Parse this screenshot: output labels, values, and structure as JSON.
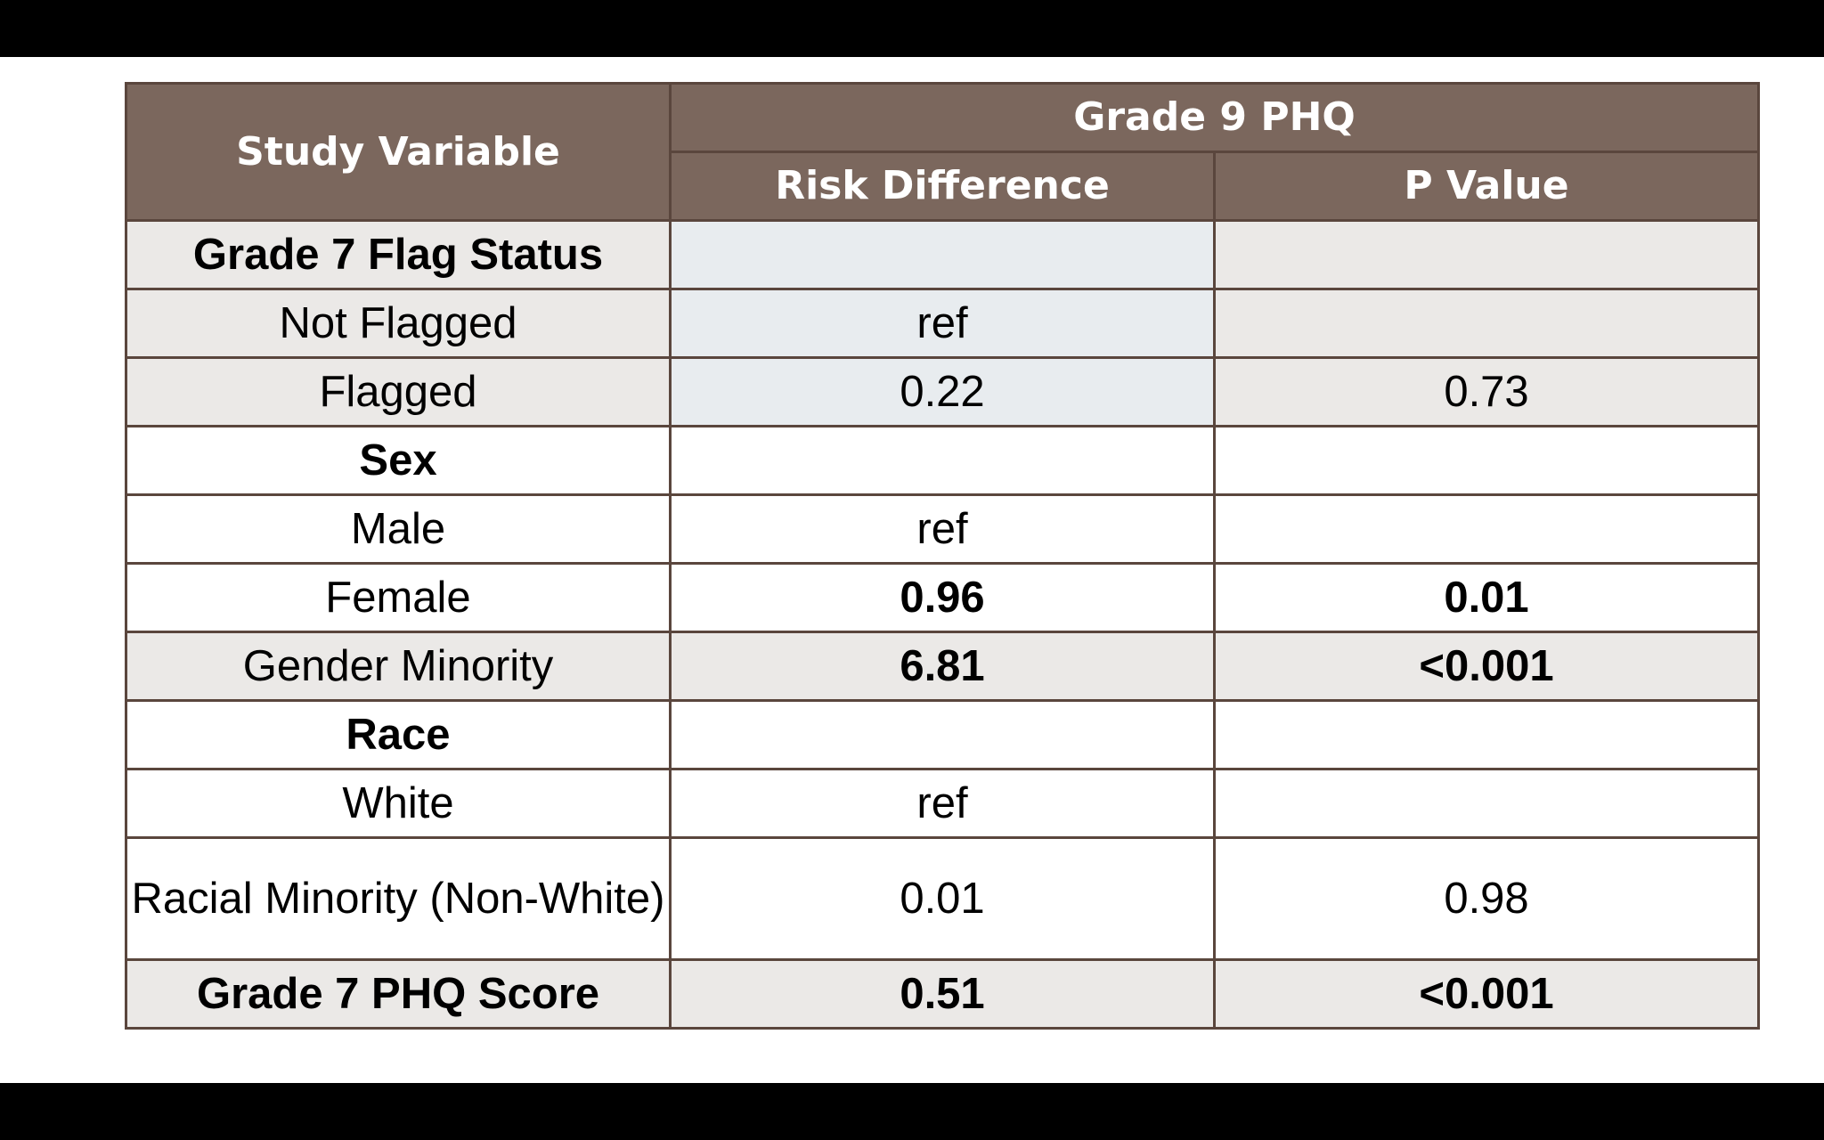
{
  "header": {
    "study_variable": "Study Variable",
    "group": "Grade 9 PHQ",
    "risk_difference": "Risk Difference",
    "p_value": "P Value"
  },
  "rows": [
    {
      "label": "Grade 7 Flag Status",
      "type": "section",
      "risk": "",
      "p": "",
      "bold_values": false
    },
    {
      "label": "Not Flagged",
      "type": "item",
      "risk": "ref",
      "p": "",
      "bold_values": false
    },
    {
      "label": "Flagged",
      "type": "item",
      "risk": "0.22",
      "p": "0.73",
      "bold_values": false
    },
    {
      "label": "Sex",
      "type": "section",
      "risk": "",
      "p": "",
      "bold_values": false
    },
    {
      "label": "Male",
      "type": "item",
      "risk": "ref",
      "p": "",
      "bold_values": false
    },
    {
      "label": "Female",
      "type": "item",
      "risk": "0.96",
      "p": "0.01",
      "bold_values": true
    },
    {
      "label": "Gender Minority",
      "type": "item",
      "risk": "6.81",
      "p": "<0.001",
      "bold_values": true
    },
    {
      "label": "Race",
      "type": "section",
      "risk": "",
      "p": "",
      "bold_values": false
    },
    {
      "label": "White",
      "type": "item",
      "risk": "ref",
      "p": "",
      "bold_values": false
    },
    {
      "label": "Racial Minority (Non-White)",
      "type": "item",
      "risk": "0.01",
      "p": "0.98",
      "bold_values": false
    },
    {
      "label": "Grade 7 PHQ Score",
      "type": "section",
      "risk": "0.51",
      "p": "<0.001",
      "bold_values": true
    }
  ],
  "colors": {
    "header_bg": "#7b675d",
    "border": "#5a463d",
    "shaded_row": "#ebe9e7",
    "tinted_cell": "#e8ecef"
  }
}
